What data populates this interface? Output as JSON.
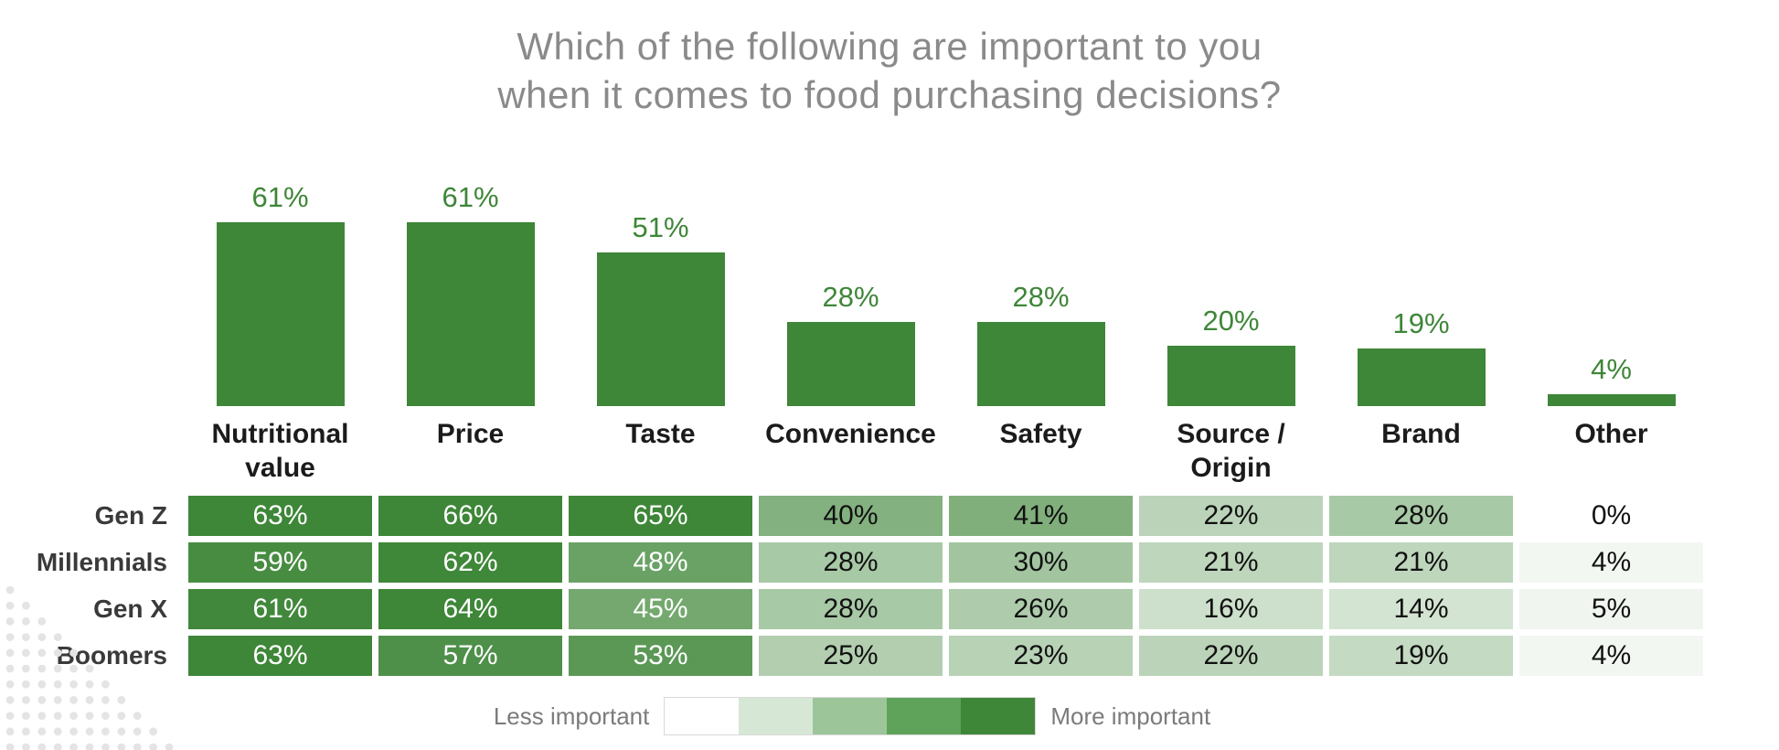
{
  "title": {
    "line1": "Which of the following are important to you",
    "line2": "when it comes to food purchasing decisions?"
  },
  "colors": {
    "accent_green": "#3e8638",
    "title_gray": "#8a8a8a",
    "category_label_dark": "#1b1b1b",
    "row_label_gray": "#3a3a3a",
    "legend_text_gray": "#7b7b7b",
    "dot_gray": "#e4e4e4",
    "cell_text_dark": "#111111",
    "cell_text_light": "#ffffff"
  },
  "chart_data": {
    "type": "bar",
    "title": "Which of the following are important to you when it comes to food purchasing decisions?",
    "categories": [
      "Nutritional value",
      "Price",
      "Taste",
      "Convenience",
      "Safety",
      "Source / Origin",
      "Brand",
      "Other"
    ],
    "values": [
      61,
      61,
      51,
      28,
      28,
      20,
      19,
      4
    ],
    "value_suffix": "%",
    "bar_color": "#3e8638",
    "ylim": [
      0,
      66
    ],
    "grid": false,
    "heatmap": {
      "type": "heatmap",
      "row_labels": [
        "Gen Z",
        "Millennials",
        "Gen X",
        "Boomers"
      ],
      "columns": [
        "Nutritional value",
        "Price",
        "Taste",
        "Convenience",
        "Safety",
        "Source / Origin",
        "Brand",
        "Other"
      ],
      "rows": [
        {
          "label": "Gen Z",
          "values": [
            63,
            66,
            65,
            40,
            41,
            22,
            28,
            0
          ]
        },
        {
          "label": "Millennials",
          "values": [
            59,
            62,
            48,
            28,
            30,
            21,
            21,
            4
          ]
        },
        {
          "label": "Gen X",
          "values": [
            61,
            64,
            45,
            28,
            26,
            16,
            14,
            5
          ]
        },
        {
          "label": "Boomers",
          "values": [
            63,
            57,
            53,
            25,
            23,
            22,
            19,
            4
          ]
        }
      ],
      "max_value": 66,
      "white_text_threshold": 45
    },
    "legend": {
      "less_label": "Less important",
      "more_label": "More important",
      "position": "bottom-center",
      "swatches": [
        "#ffffff",
        "#d6e8d5",
        "#9cc69a",
        "#5fa35b",
        "#3e8638"
      ]
    }
  }
}
